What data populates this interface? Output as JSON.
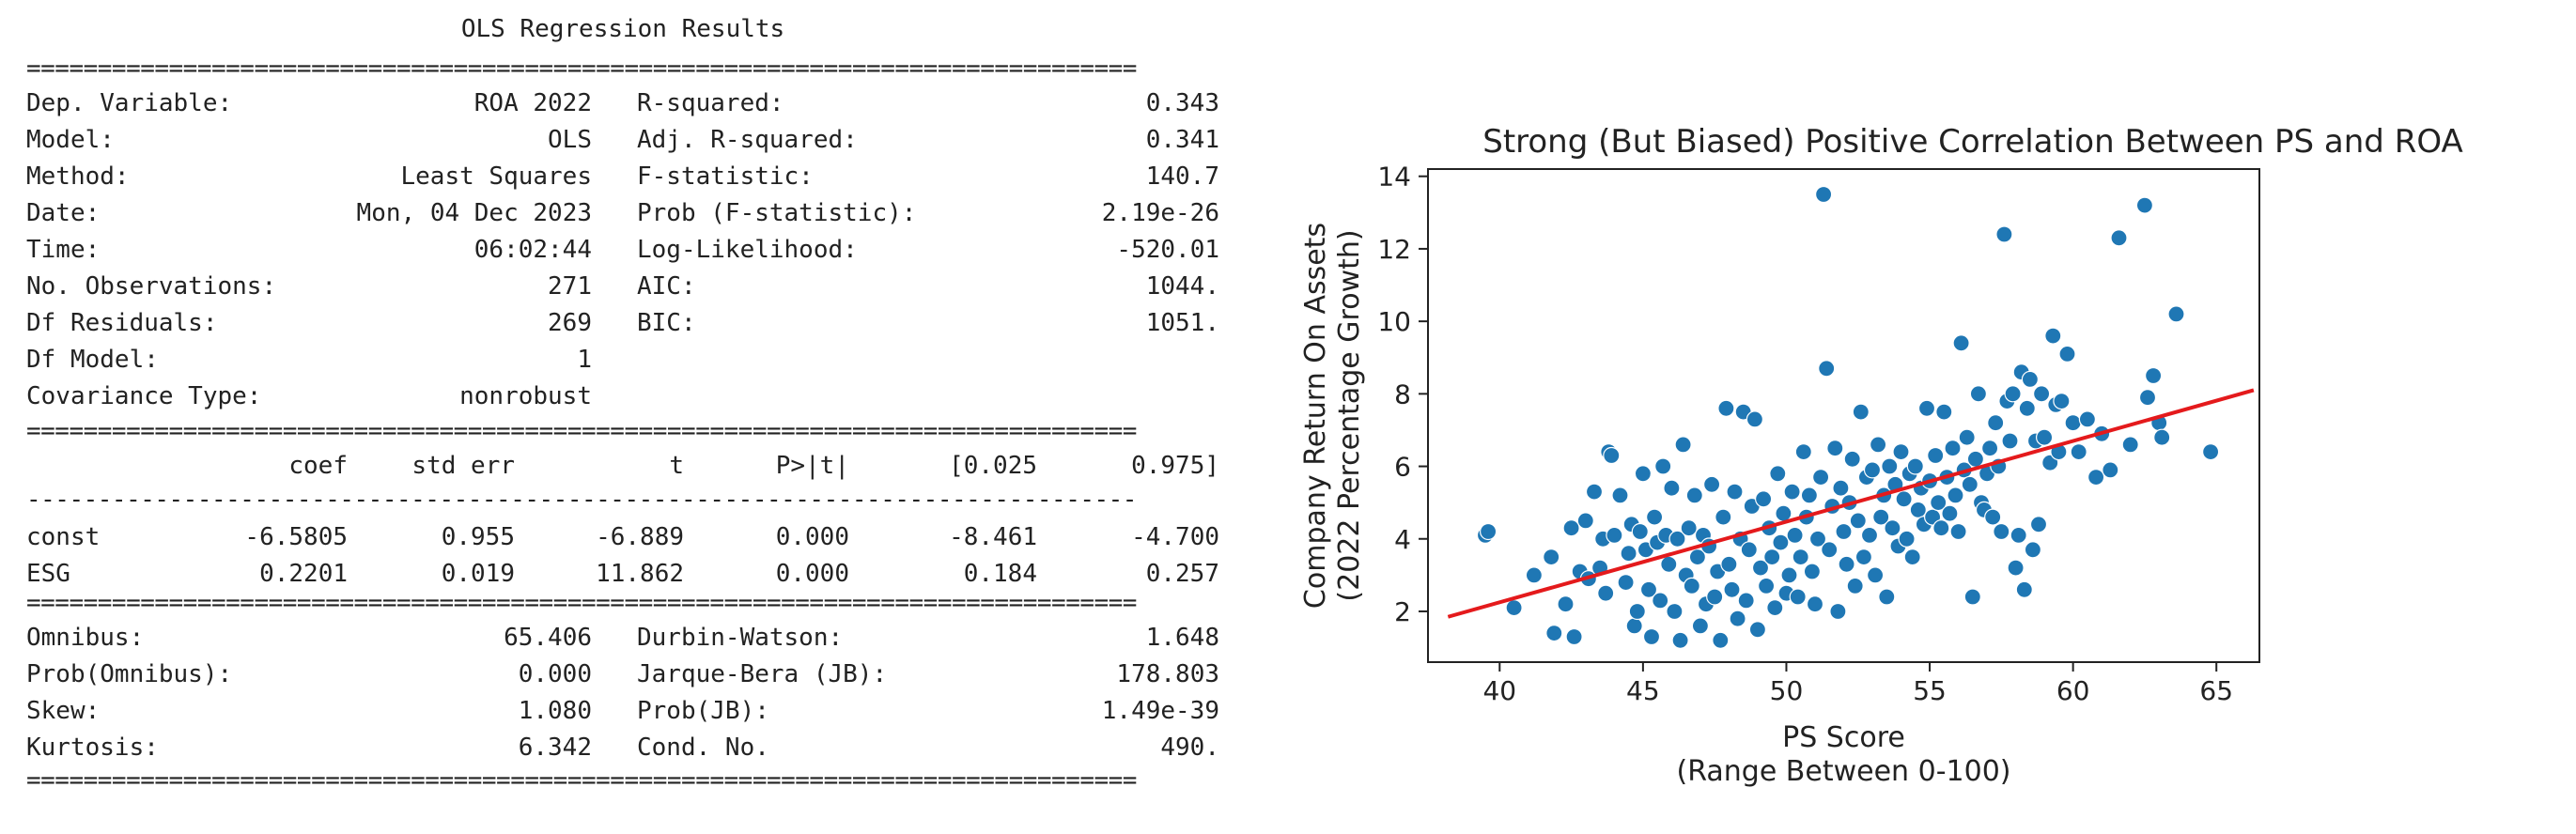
{
  "ols": {
    "title": "OLS Regression Results",
    "summary_left": [
      {
        "label": "Dep. Variable:",
        "value": "ROA 2022"
      },
      {
        "label": "Model:",
        "value": "OLS"
      },
      {
        "label": "Method:",
        "value": "Least Squares"
      },
      {
        "label": "Date:",
        "value": "Mon, 04 Dec 2023"
      },
      {
        "label": "Time:",
        "value": "06:02:44"
      },
      {
        "label": "No. Observations:",
        "value": "271"
      },
      {
        "label": "Df Residuals:",
        "value": "269"
      },
      {
        "label": "Df Model:",
        "value": "1"
      },
      {
        "label": "Covariance Type:",
        "value": "nonrobust"
      }
    ],
    "summary_right": [
      {
        "label": "R-squared:",
        "value": "0.343"
      },
      {
        "label": "Adj. R-squared:",
        "value": "0.341"
      },
      {
        "label": "F-statistic:",
        "value": "140.7"
      },
      {
        "label": "Prob (F-statistic):",
        "value": "2.19e-26"
      },
      {
        "label": "Log-Likelihood:",
        "value": "-520.01"
      },
      {
        "label": "AIC:",
        "value": "1044."
      },
      {
        "label": "BIC:",
        "value": "1051."
      }
    ],
    "coef_headers": [
      "coef",
      "std err",
      "t",
      "P>|t|",
      "[0.025",
      "0.975]"
    ],
    "coef_rows": [
      {
        "name": "const",
        "cells": [
          "-6.5805",
          "0.955",
          "-6.889",
          "0.000",
          "-8.461",
          "-4.700"
        ]
      },
      {
        "name": "ESG",
        "cells": [
          "0.2201",
          "0.019",
          "11.862",
          "0.000",
          "0.184",
          "0.257"
        ]
      }
    ],
    "diag_left": [
      {
        "label": "Omnibus:",
        "value": "65.406"
      },
      {
        "label": "Prob(Omnibus):",
        "value": "0.000"
      },
      {
        "label": "Skew:",
        "value": "1.080"
      },
      {
        "label": "Kurtosis:",
        "value": "6.342"
      }
    ],
    "diag_right": [
      {
        "label": "Durbin-Watson:",
        "value": "1.648"
      },
      {
        "label": "Jarque-Bera (JB):",
        "value": "178.803"
      },
      {
        "label": "Prob(JB):",
        "value": "1.49e-39"
      },
      {
        "label": "Cond. No.",
        "value": "490."
      }
    ],
    "rule_double": "==============================================================================",
    "rule_single": "------------------------------------------------------------------------------"
  },
  "chart_data": {
    "type": "scatter",
    "title": "Strong (But Biased) Positive Correlation Between PS and ROA",
    "xlabel": "PS Score\n(Range Between 0-100)",
    "ylabel": "Company Return On Assets\n(2022 Percentage Growth)",
    "xlim": [
      37.5,
      66.5
    ],
    "ylim": [
      0.6,
      14.2
    ],
    "xticks": [
      40,
      45,
      50,
      55,
      60,
      65
    ],
    "yticks": [
      2,
      4,
      6,
      8,
      10,
      12,
      14
    ],
    "grid": false,
    "point_color": "#1f77b4",
    "line_color": "#e41a1c",
    "fit_line": {
      "x": [
        38.2,
        66.3
      ],
      "y": [
        1.85,
        8.1
      ]
    },
    "points": [
      [
        39.5,
        4.1
      ],
      [
        39.6,
        4.2
      ],
      [
        40.5,
        2.1
      ],
      [
        41.2,
        3.0
      ],
      [
        41.8,
        3.5
      ],
      [
        41.9,
        1.4
      ],
      [
        42.3,
        2.2
      ],
      [
        42.5,
        4.3
      ],
      [
        42.6,
        1.3
      ],
      [
        42.8,
        3.1
      ],
      [
        43.0,
        4.5
      ],
      [
        43.1,
        2.9
      ],
      [
        43.3,
        5.3
      ],
      [
        43.5,
        3.2
      ],
      [
        43.6,
        4.0
      ],
      [
        43.7,
        2.5
      ],
      [
        43.8,
        6.4
      ],
      [
        43.9,
        6.3
      ],
      [
        44.0,
        4.1
      ],
      [
        44.2,
        5.2
      ],
      [
        44.4,
        2.8
      ],
      [
        44.5,
        3.6
      ],
      [
        44.6,
        4.4
      ],
      [
        44.7,
        1.6
      ],
      [
        44.8,
        2.0
      ],
      [
        44.9,
        4.2
      ],
      [
        45.0,
        5.8
      ],
      [
        45.1,
        3.7
      ],
      [
        45.2,
        2.6
      ],
      [
        45.3,
        1.3
      ],
      [
        45.4,
        4.6
      ],
      [
        45.5,
        3.9
      ],
      [
        45.6,
        2.3
      ],
      [
        45.7,
        6.0
      ],
      [
        45.8,
        4.1
      ],
      [
        45.9,
        3.3
      ],
      [
        46.0,
        5.4
      ],
      [
        46.1,
        2.0
      ],
      [
        46.2,
        4.0
      ],
      [
        46.3,
        1.2
      ],
      [
        46.4,
        6.6
      ],
      [
        46.5,
        3.0
      ],
      [
        46.6,
        4.3
      ],
      [
        46.7,
        2.7
      ],
      [
        46.8,
        5.2
      ],
      [
        46.9,
        3.5
      ],
      [
        47.0,
        1.6
      ],
      [
        47.1,
        4.1
      ],
      [
        47.2,
        2.2
      ],
      [
        47.3,
        3.8
      ],
      [
        47.4,
        5.5
      ],
      [
        47.5,
        2.4
      ],
      [
        47.6,
        3.1
      ],
      [
        47.7,
        1.2
      ],
      [
        47.8,
        4.6
      ],
      [
        47.9,
        7.6
      ],
      [
        48.0,
        3.3
      ],
      [
        48.1,
        2.6
      ],
      [
        48.2,
        5.3
      ],
      [
        48.3,
        1.8
      ],
      [
        48.4,
        4.0
      ],
      [
        48.5,
        7.5
      ],
      [
        48.6,
        2.3
      ],
      [
        48.7,
        3.7
      ],
      [
        48.8,
        4.9
      ],
      [
        48.9,
        7.3
      ],
      [
        49.0,
        1.5
      ],
      [
        49.1,
        3.2
      ],
      [
        49.2,
        5.1
      ],
      [
        49.3,
        2.7
      ],
      [
        49.4,
        4.3
      ],
      [
        49.5,
        3.5
      ],
      [
        49.6,
        2.1
      ],
      [
        49.7,
        5.8
      ],
      [
        49.8,
        3.9
      ],
      [
        49.9,
        4.7
      ],
      [
        50.0,
        2.5
      ],
      [
        50.1,
        3.0
      ],
      [
        50.2,
        5.3
      ],
      [
        50.3,
        4.1
      ],
      [
        50.4,
        2.4
      ],
      [
        50.5,
        3.5
      ],
      [
        50.6,
        6.4
      ],
      [
        50.7,
        4.6
      ],
      [
        50.8,
        5.2
      ],
      [
        50.9,
        3.1
      ],
      [
        51.0,
        2.2
      ],
      [
        51.1,
        4.0
      ],
      [
        51.2,
        5.7
      ],
      [
        51.3,
        13.5
      ],
      [
        51.4,
        8.7
      ],
      [
        51.5,
        3.7
      ],
      [
        51.6,
        4.9
      ],
      [
        51.7,
        6.5
      ],
      [
        51.8,
        2.0
      ],
      [
        51.9,
        5.4
      ],
      [
        52.0,
        4.2
      ],
      [
        52.1,
        3.3
      ],
      [
        52.2,
        5.0
      ],
      [
        52.3,
        6.2
      ],
      [
        52.4,
        2.7
      ],
      [
        52.5,
        4.5
      ],
      [
        52.6,
        7.5
      ],
      [
        52.7,
        3.5
      ],
      [
        52.8,
        5.7
      ],
      [
        52.9,
        4.1
      ],
      [
        53.0,
        5.9
      ],
      [
        53.1,
        3.0
      ],
      [
        53.2,
        6.6
      ],
      [
        53.3,
        4.6
      ],
      [
        53.4,
        5.2
      ],
      [
        53.5,
        2.4
      ],
      [
        53.6,
        6.0
      ],
      [
        53.7,
        4.3
      ],
      [
        53.8,
        5.5
      ],
      [
        53.9,
        3.8
      ],
      [
        54.0,
        6.4
      ],
      [
        54.1,
        5.1
      ],
      [
        54.2,
        4.0
      ],
      [
        54.3,
        5.8
      ],
      [
        54.4,
        3.5
      ],
      [
        54.5,
        6.0
      ],
      [
        54.6,
        4.8
      ],
      [
        54.7,
        5.4
      ],
      [
        54.8,
        4.4
      ],
      [
        54.9,
        7.6
      ],
      [
        55.0,
        5.6
      ],
      [
        55.1,
        4.6
      ],
      [
        55.2,
        6.3
      ],
      [
        55.3,
        5.0
      ],
      [
        55.4,
        4.3
      ],
      [
        55.5,
        7.5
      ],
      [
        55.6,
        5.7
      ],
      [
        55.7,
        4.7
      ],
      [
        55.8,
        6.5
      ],
      [
        55.9,
        5.2
      ],
      [
        56.0,
        4.2
      ],
      [
        56.1,
        9.4
      ],
      [
        56.2,
        5.9
      ],
      [
        56.3,
        6.8
      ],
      [
        56.4,
        5.5
      ],
      [
        56.5,
        2.4
      ],
      [
        56.6,
        6.2
      ],
      [
        56.7,
        8.0
      ],
      [
        56.8,
        5.0
      ],
      [
        56.9,
        4.8
      ],
      [
        57.0,
        5.8
      ],
      [
        57.1,
        6.5
      ],
      [
        57.2,
        4.6
      ],
      [
        57.3,
        7.2
      ],
      [
        57.4,
        6.0
      ],
      [
        57.5,
        4.2
      ],
      [
        57.6,
        12.4
      ],
      [
        57.7,
        7.8
      ],
      [
        57.8,
        6.7
      ],
      [
        57.9,
        8.0
      ],
      [
        58.0,
        3.2
      ],
      [
        58.1,
        4.1
      ],
      [
        58.2,
        8.6
      ],
      [
        58.3,
        2.6
      ],
      [
        58.4,
        7.6
      ],
      [
        58.5,
        8.4
      ],
      [
        58.6,
        3.7
      ],
      [
        58.7,
        6.7
      ],
      [
        58.8,
        4.4
      ],
      [
        58.9,
        8.0
      ],
      [
        59.0,
        6.8
      ],
      [
        59.2,
        6.1
      ],
      [
        59.3,
        9.6
      ],
      [
        59.4,
        7.7
      ],
      [
        59.5,
        6.4
      ],
      [
        59.6,
        7.8
      ],
      [
        59.8,
        9.1
      ],
      [
        60.0,
        7.2
      ],
      [
        60.2,
        6.4
      ],
      [
        60.5,
        7.3
      ],
      [
        60.8,
        5.7
      ],
      [
        61.0,
        6.9
      ],
      [
        61.3,
        5.9
      ],
      [
        61.6,
        12.3
      ],
      [
        62.0,
        6.6
      ],
      [
        62.5,
        13.2
      ],
      [
        62.6,
        7.9
      ],
      [
        62.8,
        8.5
      ],
      [
        63.0,
        7.2
      ],
      [
        63.1,
        6.8
      ],
      [
        63.6,
        10.2
      ],
      [
        64.8,
        6.4
      ]
    ]
  }
}
